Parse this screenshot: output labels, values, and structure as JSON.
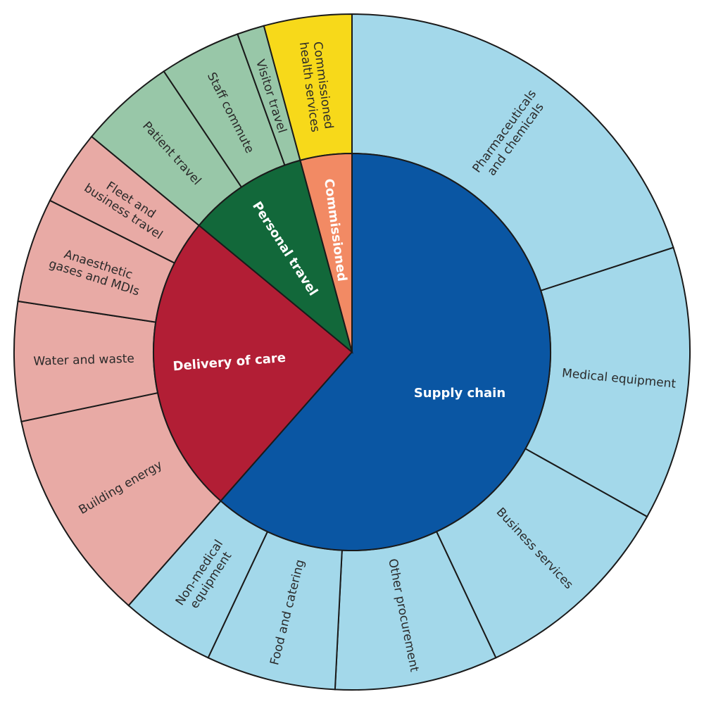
{
  "chart_data": {
    "type": "sunburst",
    "start_angle_deg": 0,
    "direction": "clockwise",
    "groups": [
      {
        "name": "Supply chain",
        "color": "#0a56a3",
        "light_color": "#a3d8ea",
        "label_dark": false,
        "children": [
          {
            "name": "Pharmaceuticals\nand chemicals",
            "value": 20
          },
          {
            "name": "Medical equipment",
            "value": 13.1
          },
          {
            "name": "Business services",
            "value": 9.9
          },
          {
            "name": "Other procurement",
            "value": 7.8
          },
          {
            "name": "Food and catering",
            "value": 6.2
          },
          {
            "name": "Non-medical\nequipment",
            "value": 4.5
          }
        ]
      },
      {
        "name": "Delivery of care",
        "color": "#b21e35",
        "light_color": "#e8aaa5",
        "label_dark": false,
        "children": [
          {
            "name": "Building energy",
            "value": 10.2
          },
          {
            "name": "Water and waste",
            "value": 5.7
          },
          {
            "name": "Anaesthetic\ngases and MDIs",
            "value": 5.0
          },
          {
            "name": "Fleet and\nbusiness travel",
            "value": 3.6
          }
        ]
      },
      {
        "name": "Personal travel",
        "color": "#12683a",
        "light_color": "#98c7a8",
        "label_dark": false,
        "children": [
          {
            "name": "Patient travel",
            "value": 4.6
          },
          {
            "name": "Staff commute",
            "value": 3.9
          },
          {
            "name": "Visitor travel",
            "value": 1.3
          }
        ]
      },
      {
        "name": "Commissioned",
        "color": "#f28a64",
        "light_color": "#f7d91a",
        "label_dark": true,
        "children": [
          {
            "name": "Commissioned\nhealth services",
            "value": 4.2
          }
        ]
      }
    ]
  }
}
